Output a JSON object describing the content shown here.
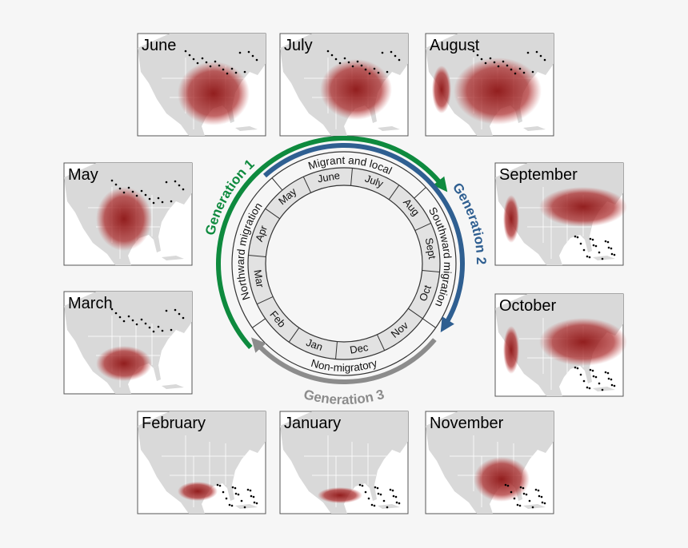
{
  "panels": [
    {
      "label": "June"
    },
    {
      "label": "July"
    },
    {
      "label": "August"
    },
    {
      "label": "May"
    },
    {
      "label": "September"
    },
    {
      "label": "March"
    },
    {
      "label": "October"
    },
    {
      "label": "February"
    },
    {
      "label": "January"
    },
    {
      "label": "November"
    }
  ],
  "ring": {
    "months": [
      "June",
      "July",
      "Aug",
      "Sept",
      "Oct",
      "Nov",
      "Dec",
      "Jan",
      "Feb",
      "Mar",
      "Apr",
      "May"
    ],
    "phases": [
      "Migrant and local",
      "Southward migration",
      "Non-migratory",
      "Northward migration"
    ]
  },
  "generations": [
    "Generation 1",
    "Generation 2",
    "Generation 3"
  ]
}
